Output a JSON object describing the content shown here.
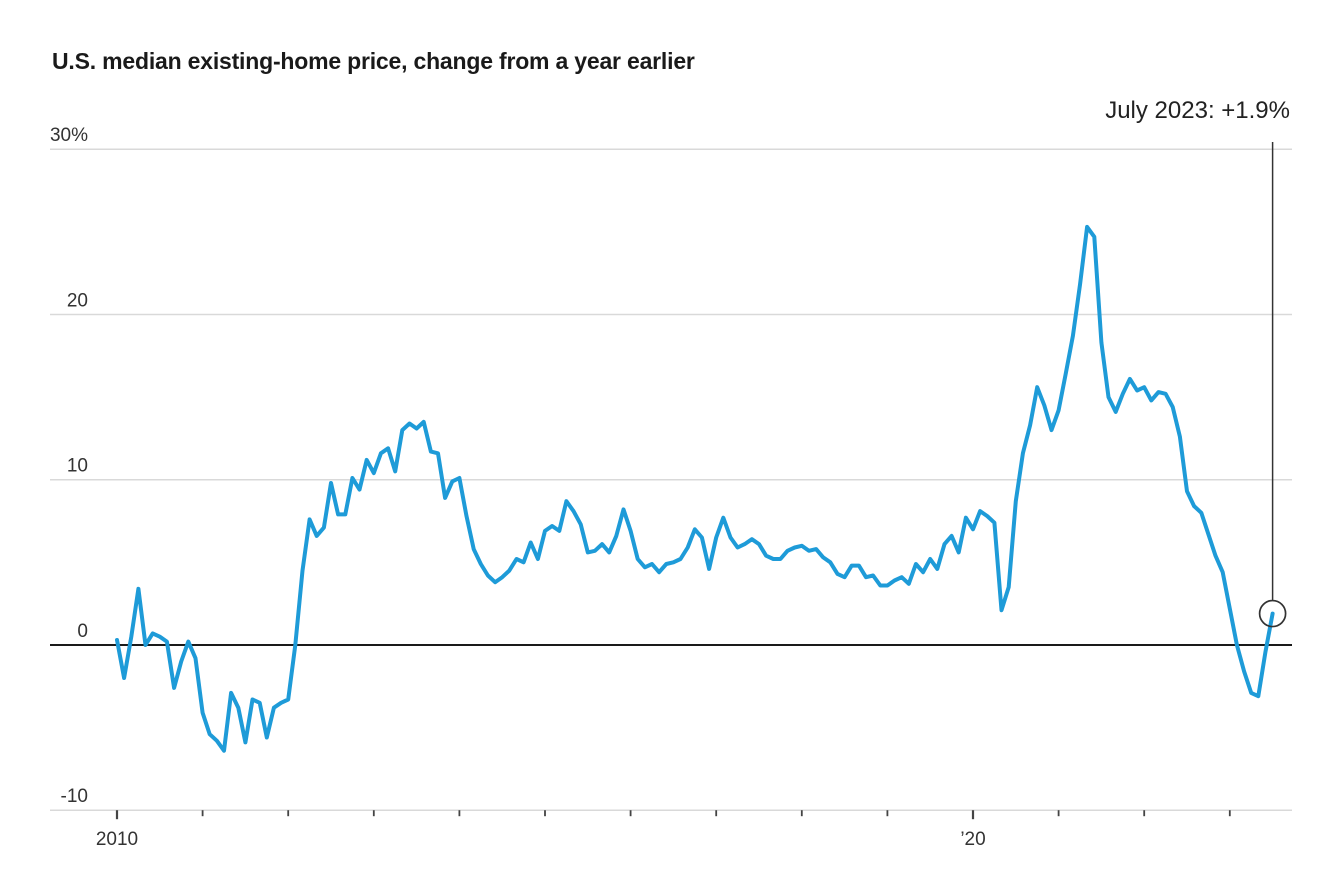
{
  "header": {
    "title": "U.S. median existing-home price, change from a year earlier"
  },
  "annotation": {
    "label": "July 2023: +1.9%"
  },
  "chart_data": {
    "type": "line",
    "title": "U.S. median existing-home price, change from a year earlier",
    "series_name": "Median existing-home price, % change from a year earlier",
    "unit": "%",
    "start_month": "2010-01",
    "end_month": "2023-07",
    "frequency": "monthly",
    "values": [
      0.3,
      -2.0,
      0.5,
      3.4,
      0.0,
      0.7,
      0.5,
      0.2,
      -2.6,
      -1.0,
      0.2,
      -0.8,
      -4.1,
      -5.4,
      -5.8,
      -6.4,
      -2.9,
      -3.8,
      -5.9,
      -3.3,
      -3.5,
      -5.6,
      -3.8,
      -3.5,
      -3.3,
      0.0,
      4.5,
      7.6,
      6.6,
      7.1,
      9.8,
      7.9,
      7.9,
      10.1,
      9.4,
      11.2,
      10.4,
      11.6,
      11.9,
      10.5,
      13.0,
      13.4,
      13.1,
      13.5,
      11.7,
      11.6,
      8.9,
      9.9,
      10.1,
      7.8,
      5.8,
      4.9,
      4.2,
      3.8,
      4.1,
      4.5,
      5.2,
      5.0,
      6.2,
      5.2,
      6.9,
      7.2,
      6.9,
      8.7,
      8.1,
      7.3,
      5.6,
      5.7,
      6.1,
      5.6,
      6.6,
      8.2,
      6.9,
      5.2,
      4.7,
      4.9,
      4.4,
      4.9,
      5.0,
      5.2,
      5.9,
      7.0,
      6.5,
      4.6,
      6.5,
      7.7,
      6.5,
      5.9,
      6.1,
      6.4,
      6.1,
      5.4,
      5.2,
      5.2,
      5.7,
      5.9,
      6.0,
      5.7,
      5.8,
      5.3,
      5.0,
      4.3,
      4.1,
      4.8,
      4.8,
      4.1,
      4.2,
      3.6,
      3.6,
      3.9,
      4.1,
      3.7,
      4.9,
      4.4,
      5.2,
      4.6,
      6.1,
      6.6,
      5.6,
      7.7,
      7.0,
      8.1,
      7.8,
      7.4,
      2.1,
      3.5,
      8.7,
      11.6,
      13.3,
      15.6,
      14.5,
      13.0,
      14.2,
      16.4,
      18.7,
      21.8,
      25.3,
      24.7,
      18.3,
      15.0,
      14.1,
      15.2,
      16.1,
      15.4,
      15.6,
      14.8,
      15.3,
      15.2,
      14.4,
      12.6,
      9.3,
      8.4,
      8.0,
      6.7,
      5.4,
      4.4,
      2.2,
      0.0,
      -1.6,
      -2.9,
      -3.1,
      -0.4,
      1.9
    ],
    "y_axis": {
      "ticks": [
        30,
        20,
        10,
        0,
        -10
      ],
      "tick_labels": [
        "30%",
        "20",
        "10",
        "0",
        "-10"
      ],
      "range": [
        -10,
        30
      ],
      "zero_line": true,
      "grid": "horizontal-only"
    },
    "x_axis": {
      "tick_years": [
        2010,
        2011,
        2012,
        2013,
        2014,
        2015,
        2016,
        2017,
        2018,
        2019,
        2020,
        2021,
        2022,
        2023
      ],
      "major_tick_years": [
        2010,
        2020
      ],
      "labels": [
        {
          "year": 2010,
          "label": "2010"
        },
        {
          "year": 2020,
          "label": "’20"
        }
      ]
    },
    "endpoint": {
      "label": "July 2023: +1.9%",
      "month": "2023-07",
      "value": 1.9,
      "marker": "open-circle"
    },
    "legend": "none",
    "colors": {
      "line": "#1E9BD8",
      "grid": "#d9d9d9",
      "zero_line": "#1a1a1a",
      "axis_tick": "#444444",
      "axis_text": "#333333",
      "annotation": "#333333",
      "title_text": "#1a1a1a",
      "background": "#ffffff"
    }
  }
}
